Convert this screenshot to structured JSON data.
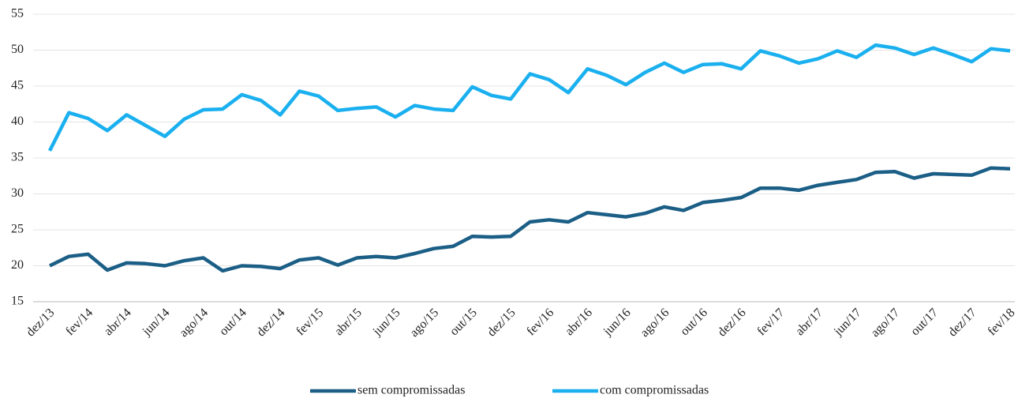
{
  "chart_data": {
    "type": "line",
    "categories": [
      "dez/13",
      null,
      "fev/14",
      null,
      "abr/14",
      null,
      "jun/14",
      null,
      "ago/14",
      null,
      "out/14",
      null,
      "dez/14",
      null,
      "fev/15",
      null,
      "abr/15",
      null,
      "jun/15",
      null,
      "ago/15",
      null,
      "out/15",
      null,
      "dez/15",
      null,
      "fev/16",
      null,
      "abr/16",
      null,
      "jun/16",
      null,
      "ago/16",
      null,
      "out/16",
      null,
      "dez/16",
      null,
      "fev/17",
      null,
      "abr/17",
      null,
      "jun/17",
      null,
      "ago/17",
      null,
      "out/17",
      null,
      "dez/17",
      null,
      "fev/18"
    ],
    "series": [
      {
        "name": "sem compromissadas",
        "color": "#1b5e86",
        "values": [
          20.0,
          21.3,
          21.6,
          19.4,
          20.4,
          20.3,
          20.0,
          20.7,
          21.1,
          19.3,
          20.0,
          19.9,
          19.6,
          20.8,
          21.1,
          20.1,
          21.1,
          21.3,
          21.1,
          21.7,
          22.4,
          22.7,
          24.1,
          24.0,
          24.1,
          26.1,
          26.4,
          26.1,
          27.4,
          27.1,
          26.8,
          27.3,
          28.2,
          27.7,
          28.8,
          29.1,
          29.5,
          30.8,
          30.8,
          30.5,
          31.2,
          31.6,
          32.0,
          33.0,
          33.1,
          32.2,
          32.8,
          32.7,
          32.6,
          33.6,
          33.5
        ]
      },
      {
        "name": "com compromissadas",
        "color": "#1ab0ef",
        "values": [
          36.0,
          41.3,
          40.5,
          38.8,
          41.0,
          39.5,
          38.0,
          40.4,
          41.7,
          41.8,
          43.8,
          43.0,
          41.0,
          44.3,
          43.6,
          41.6,
          41.9,
          42.1,
          40.7,
          42.3,
          41.8,
          41.6,
          44.9,
          43.7,
          43.2,
          46.7,
          45.9,
          44.1,
          47.4,
          46.5,
          45.2,
          46.9,
          48.2,
          46.9,
          48.0,
          48.1,
          47.4,
          49.9,
          49.2,
          48.2,
          48.8,
          49.9,
          49.0,
          50.7,
          50.3,
          49.4,
          50.3,
          49.4,
          48.4,
          50.2,
          49.9
        ]
      }
    ],
    "ylim": [
      15,
      55
    ],
    "yticks": [
      15,
      20,
      25,
      30,
      35,
      40,
      45,
      50,
      55
    ],
    "grid": true,
    "legend": "bottom"
  }
}
